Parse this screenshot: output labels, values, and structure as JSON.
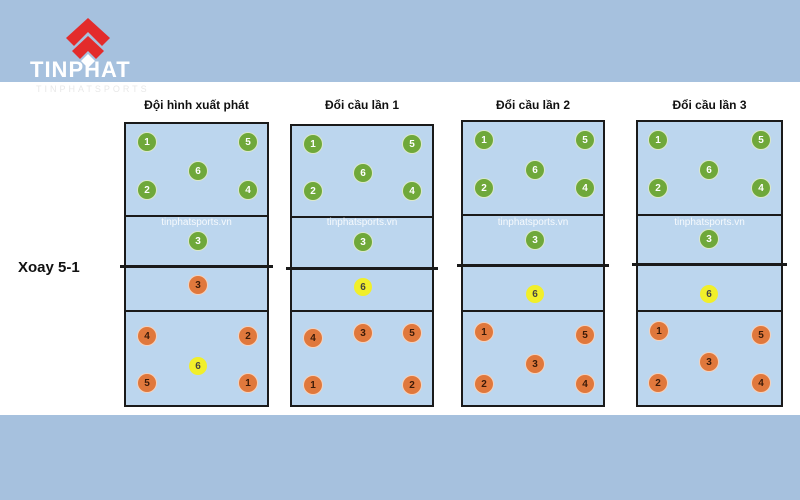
{
  "logo": {
    "name": "TINPHAT",
    "sub": "TINPHATSPORTS",
    "colors": {
      "red": "#e32b2b",
      "white": "#ffffff"
    }
  },
  "row_label": "Xoay 5-1",
  "watermark": "tinphatsports.vn",
  "colors": {
    "front_team": "#6fa83a",
    "back_team": "#e0783c",
    "setter": "#f1ef2a",
    "court": "#bcd6ee",
    "background": "#a6c1de"
  },
  "courts": [
    {
      "title": "Đội hình xuất phát",
      "top_players": [
        "1",
        "5",
        "6",
        "2",
        "4",
        "3"
      ],
      "bottom_players": [
        {
          "n": "3",
          "c": "orange"
        },
        {
          "n": "4",
          "c": "orange"
        },
        {
          "n": "2",
          "c": "orange"
        },
        {
          "n": "6",
          "c": "yellow"
        },
        {
          "n": "5",
          "c": "orange"
        },
        {
          "n": "1",
          "c": "orange"
        }
      ]
    },
    {
      "title": "Đổi cầu lần 1",
      "top_players": [
        "1",
        "5",
        "6",
        "2",
        "4",
        "3"
      ],
      "bottom_players": [
        {
          "n": "6",
          "c": "yellow"
        },
        {
          "n": "4",
          "c": "orange"
        },
        {
          "n": "3",
          "c": "orange"
        },
        {
          "n": "5",
          "c": "orange"
        },
        {
          "n": "1",
          "c": "orange"
        },
        {
          "n": "2",
          "c": "orange"
        }
      ]
    },
    {
      "title": "Đổi cầu lần 2",
      "top_players": [
        "1",
        "5",
        "6",
        "2",
        "4",
        "3"
      ],
      "bottom_players": [
        {
          "n": "6",
          "c": "yellow"
        },
        {
          "n": "1",
          "c": "orange"
        },
        {
          "n": "5",
          "c": "orange"
        },
        {
          "n": "3",
          "c": "orange"
        },
        {
          "n": "2",
          "c": "orange"
        },
        {
          "n": "4",
          "c": "orange"
        }
      ]
    },
    {
      "title": "Đổi cầu lần 3",
      "top_players": [
        "1",
        "5",
        "6",
        "2",
        "4",
        "3"
      ],
      "bottom_players": [
        {
          "n": "6",
          "c": "yellow"
        },
        {
          "n": "1",
          "c": "orange"
        },
        {
          "n": "5",
          "c": "orange"
        },
        {
          "n": "3",
          "c": "orange"
        },
        {
          "n": "2",
          "c": "orange"
        },
        {
          "n": "4",
          "c": "orange"
        }
      ]
    }
  ]
}
